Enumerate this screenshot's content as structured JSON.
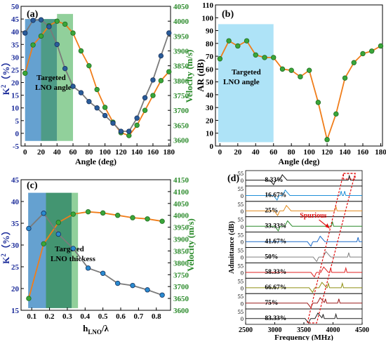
{
  "chart_data": [
    {
      "panel": "(a)",
      "type": "line",
      "xlabel": "Angle (deg)",
      "ylabel_left": "K",
      "ylabel_left_sup": "2",
      "ylabel_left_unit": "（%）",
      "ylabel_right": "Velocity (m/s)",
      "xlim": [
        -5,
        182
      ],
      "ylim_left": [
        -5,
        50
      ],
      "ylim_right": [
        3580,
        4050
      ],
      "xticks": [
        0,
        20,
        40,
        60,
        80,
        100,
        120,
        140,
        160,
        180
      ],
      "yticks_left": [
        -5,
        0,
        5,
        10,
        15,
        20,
        25,
        30,
        35,
        40,
        45,
        50
      ],
      "yticks_right": [
        3600,
        3650,
        3700,
        3750,
        3800,
        3850,
        3900,
        3950,
        4000,
        4050
      ],
      "annotation": [
        "Targeted",
        "LNO angle"
      ],
      "k2": {
        "x": [
          0,
          10,
          20,
          30,
          40,
          50,
          60,
          70,
          80,
          90,
          100,
          110,
          120,
          130,
          140,
          150,
          160,
          170,
          180
        ],
        "y": [
          39.5,
          44.5,
          44.7,
          42,
          35,
          25.5,
          18.5,
          16,
          12.5,
          10,
          7,
          4,
          0.8,
          0.8,
          6,
          14,
          21,
          30.5,
          39.5
        ]
      },
      "velocity": {
        "x": [
          0,
          10,
          20,
          30,
          40,
          50,
          60,
          70,
          80,
          90,
          100,
          110,
          120,
          130,
          140,
          150,
          160,
          170,
          180
        ],
        "y": [
          3825,
          3920,
          3950,
          3985,
          4000,
          3990,
          3960,
          3900,
          3850,
          3770,
          3710,
          3660,
          3625,
          3615,
          3650,
          3700,
          3750,
          3800,
          3830
        ]
      }
    },
    {
      "panel": "(b)",
      "type": "line",
      "xlabel": "Angle (deg)",
      "ylabel": "AR (dB)",
      "xlim": [
        -5,
        182
      ],
      "ylim": [
        0,
        110
      ],
      "xticks": [
        0,
        20,
        40,
        60,
        80,
        100,
        120,
        140,
        160,
        180
      ],
      "yticks": [
        0,
        10,
        20,
        30,
        40,
        50,
        60,
        70,
        80,
        90,
        100,
        110
      ],
      "annotation": [
        "Targeted",
        "LNO angle"
      ],
      "ar": {
        "x": [
          0,
          10,
          20,
          30,
          40,
          50,
          60,
          70,
          80,
          90,
          100,
          110,
          120,
          130,
          140,
          150,
          160,
          170,
          180
        ],
        "y": [
          68,
          82,
          78,
          82,
          71,
          69,
          69,
          60,
          59,
          54,
          59,
          34,
          5,
          25,
          53,
          65,
          72,
          74,
          78
        ]
      }
    },
    {
      "panel": "(c)",
      "type": "line",
      "xlabel_main": "h",
      "xlabel_sub": "LNO",
      "xlabel_tail": "/λ",
      "ylabel_left": "K",
      "ylabel_left_sup": "2",
      "ylabel_left_unit": "（%）",
      "ylabel_right": "Velocity (m/s)",
      "xlim": [
        0.04,
        0.88
      ],
      "ylim_left": [
        15,
        45
      ],
      "ylim_right": [
        3600,
        4150
      ],
      "xticks": [
        0.1,
        0.2,
        0.3,
        0.4,
        0.5,
        0.6,
        0.7,
        0.8
      ],
      "yticks_left": [
        15,
        20,
        25,
        30,
        35,
        40,
        45
      ],
      "yticks_right": [
        3600,
        3650,
        3700,
        3750,
        3800,
        3850,
        3900,
        3950,
        4000,
        4050,
        4100,
        4150
      ],
      "annotation": [
        "Targeted",
        "LNO thickess"
      ],
      "k2": {
        "x": [
          0.083,
          0.167,
          0.25,
          0.333,
          0.417,
          0.5,
          0.583,
          0.667,
          0.75,
          0.833
        ],
        "y": [
          33.8,
          37.3,
          32.5,
          29.2,
          24.7,
          23.5,
          21.2,
          20.7,
          19.7,
          18.5
        ]
      },
      "velocity": {
        "x": [
          0.083,
          0.167,
          0.25,
          0.333,
          0.417,
          0.5,
          0.583,
          0.667,
          0.75,
          0.833
        ],
        "y": [
          3650,
          3880,
          3970,
          4005,
          4015,
          4010,
          4000,
          3990,
          3985,
          3975
        ]
      }
    },
    {
      "panel": "(d)",
      "type": "line",
      "xlabel": "Frequency (MHz)",
      "ylabel": "Admittance (dB)",
      "xlim": [
        2500,
        4500
      ],
      "xticks": [
        2500,
        3000,
        3500,
        4000,
        4500
      ],
      "row_yticks": [
        "55",
        "0"
      ],
      "spurious_label": "Spurious",
      "traces": [
        {
          "label": "8.33%",
          "color": "#111111",
          "fr": 2980,
          "fa": 3130,
          "spur": [
            4280
          ]
        },
        {
          "label": "16.67%",
          "color": "#1f8fd8",
          "fr": 3040,
          "fa": 3180,
          "spur": [
            4140,
            4200
          ]
        },
        {
          "label": "25%",
          "color": "#e08a1c",
          "fr": 3050,
          "fa": 3200,
          "spur": [
            4050
          ]
        },
        {
          "label": "33.33%",
          "color": "#2a8a2a",
          "fr": 3060,
          "fa": 3220,
          "spur": [
            3990
          ]
        },
        {
          "label": "41.67%",
          "color": "#1b6ac9",
          "fr": 3620,
          "fa": 3780,
          "spur": [
            4430
          ]
        },
        {
          "label": "50%",
          "color": "#808080",
          "fr": 3720,
          "fa": 3880,
          "spur": [
            4270
          ]
        },
        {
          "label": "58.33%",
          "color": "#e02020",
          "fr": 3680,
          "fa": 3840,
          "spur": [
            3960,
            4220
          ]
        },
        {
          "label": "66.67%",
          "color": "#8f8f12",
          "fr": 3650,
          "fa": 3810,
          "spur": [
            3920,
            4160
          ]
        },
        {
          "label": "75%",
          "color": "#9a1a1a",
          "fr": 3620,
          "fa": 3780,
          "spur": [
            3870,
            4100
          ]
        },
        {
          "label": "83.33%",
          "color": "#222222",
          "fr": 3580,
          "fa": 3740,
          "spur": [
            3830,
            4050
          ]
        }
      ]
    }
  ]
}
